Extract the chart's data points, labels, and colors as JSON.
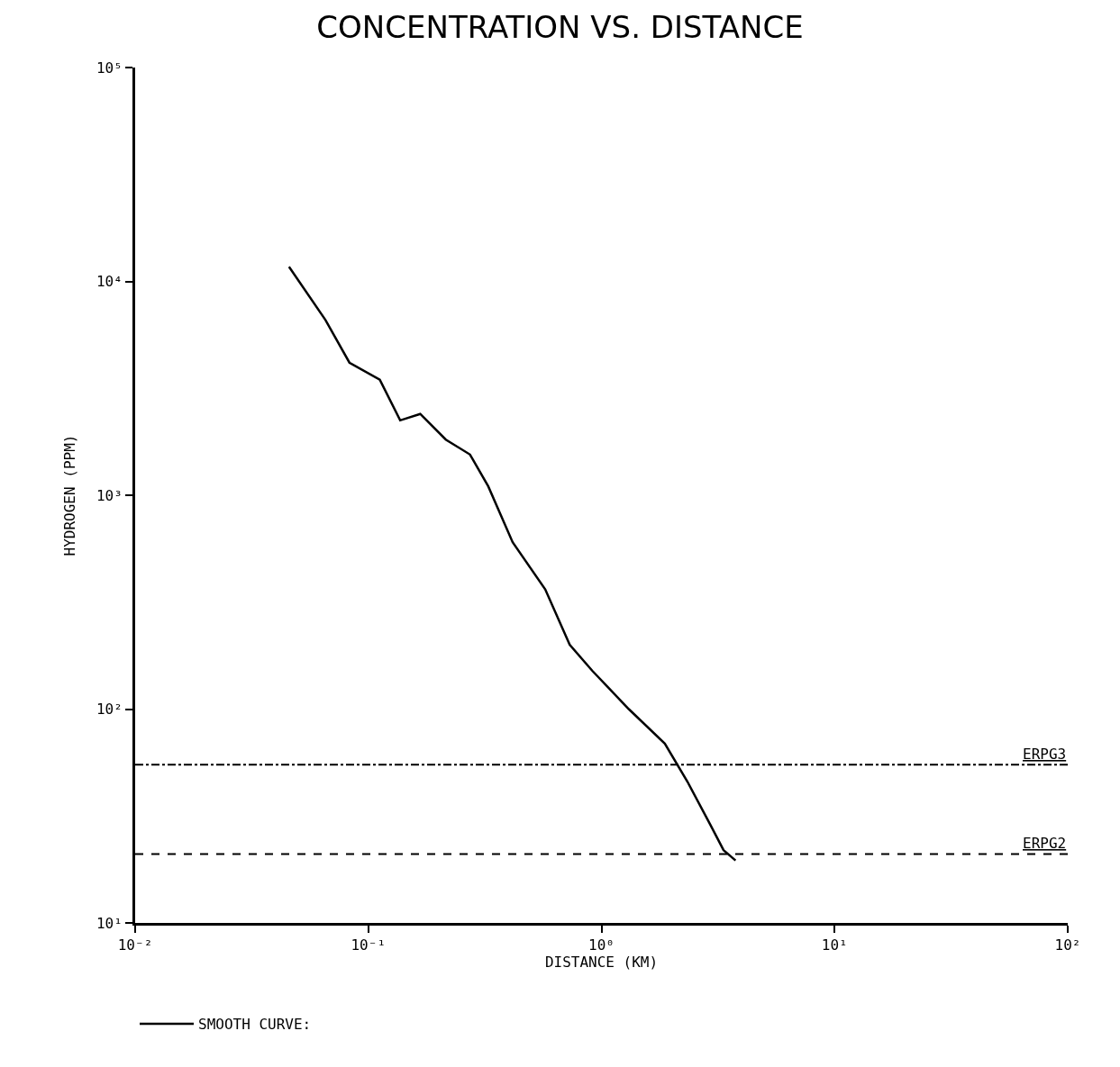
{
  "chart_data": {
    "type": "line",
    "title": "CONCENTRATION VS. DISTANCE",
    "xlabel": "DISTANCE (KM)",
    "ylabel": "HYDROGEN (PPM)",
    "log": "xy",
    "xlim": [
      0.01,
      100
    ],
    "ylim": [
      10,
      100000
    ],
    "xticks": [
      {
        "value": 0.01,
        "label": "10⁻²"
      },
      {
        "value": 0.1,
        "label": "10⁻¹"
      },
      {
        "value": 1,
        "label": "10⁰"
      },
      {
        "value": 10,
        "label": "10¹"
      },
      {
        "value": 100,
        "label": "10²"
      }
    ],
    "yticks": [
      {
        "value": 10,
        "label": "10¹"
      },
      {
        "value": 100,
        "label": "10²"
      },
      {
        "value": 1000,
        "label": "10³"
      },
      {
        "value": 10000,
        "label": "10⁴"
      },
      {
        "value": 100000,
        "label": "10⁵"
      }
    ],
    "legend": "bottom left",
    "line_style": "solid",
    "marker": "none",
    "series": [
      {
        "name": "SMOOTH CURVE:",
        "color": "#000000",
        "x": [
          0.0457,
          0.0655,
          0.083,
          0.112,
          0.137,
          0.167,
          0.215,
          0.273,
          0.327,
          0.416,
          0.574,
          0.731,
          0.914,
          1.31,
          1.87,
          2.34,
          2.93,
          3.34,
          3.76
        ],
        "values": [
          11700,
          6600,
          4170,
          3470,
          2240,
          2400,
          1820,
          1550,
          1100,
          603,
          363,
          200,
          151,
          100,
          69,
          45.7,
          28.8,
          21.9,
          19.6
        ]
      }
    ],
    "ref_lines": [
      {
        "axis": "y",
        "value": 55,
        "label": "ERPG3",
        "color": "#000000",
        "line_style": "dashdot"
      },
      {
        "axis": "y",
        "value": 21,
        "label": "ERPG2",
        "color": "#000000",
        "line_style": "dashed"
      }
    ]
  }
}
